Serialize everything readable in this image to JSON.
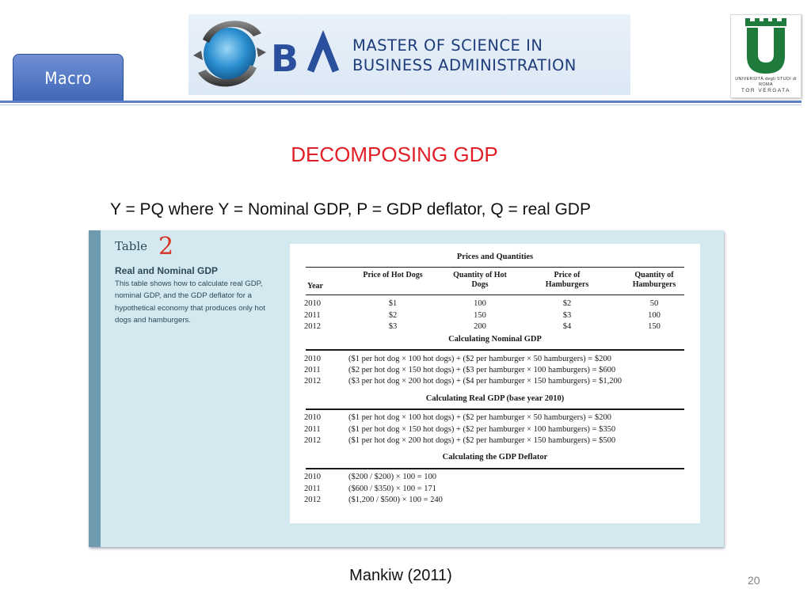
{
  "header": {
    "tab_label": "Macro",
    "banner_line1": "MASTER OF SCIENCE IN",
    "banner_line2": "BUSINESS ADMINISTRATION",
    "university_name_line1": "UNIVERSITÀ degli STUDI di ROMA",
    "university_name_line2": "TOR VERGATA",
    "colors": {
      "accent": "#e21e26",
      "tab": "#4a6fbf",
      "brand": "#1f3c7b"
    }
  },
  "slide": {
    "title": "DECOMPOSING GDP",
    "subtitle": "Y = PQ where  Y = Nominal GDP, P = GDP deflator, Q = real GDP",
    "source": "Mankiw (2011)",
    "page_number": "20"
  },
  "figure": {
    "table_label": "Table",
    "table_number": "2",
    "caption_title": "Real and Nominal GDP",
    "caption_text": "This table shows how to calculate real GDP, nominal GDP, and the GDP deflator for a hypothetical economy that produces only hot dogs and hamburgers.",
    "sections": {
      "prices": "Prices and Quantities",
      "nominal": "Calculating Nominal GDP",
      "real": "Calculating Real GDP (base year 2010)",
      "deflator": "Calculating the GDP Deflator"
    },
    "headers": {
      "year": "Year",
      "price_hotdogs": "Price of Hot Dogs",
      "qty_hotdogs": "Quantity of Hot Dogs",
      "price_hamburgers": "Price of Hamburgers",
      "qty_hamburgers": "Quantity of Hamburgers"
    },
    "prices_rows": [
      {
        "year": "2010",
        "price_hd": "$1",
        "qty_hd": "100",
        "price_hb": "$2",
        "qty_hb": "50"
      },
      {
        "year": "2011",
        "price_hd": "$2",
        "qty_hd": "150",
        "price_hb": "$3",
        "qty_hb": "100"
      },
      {
        "year": "2012",
        "price_hd": "$3",
        "qty_hd": "200",
        "price_hb": "$4",
        "qty_hb": "150"
      }
    ],
    "nominal_rows": [
      {
        "year": "2010",
        "calc": "($1 per hot dog × 100 hot dogs) + ($2 per hamburger × 50 hamburgers) = $200"
      },
      {
        "year": "2011",
        "calc": "($2 per hot dog × 150 hot dogs) + ($3 per hamburger × 100 hamburgers) = $600"
      },
      {
        "year": "2012",
        "calc": "($3 per hot dog × 200 hot dogs) + ($4 per hamburger × 150 hamburgers) = $1,200"
      }
    ],
    "real_rows": [
      {
        "year": "2010",
        "calc": "($1 per hot dog × 100 hot dogs) + ($2 per hamburger × 50 hamburgers) = $200"
      },
      {
        "year": "2011",
        "calc": "($1 per hot dog × 150 hot dogs) + ($2 per hamburger × 100 hamburgers) = $350"
      },
      {
        "year": "2012",
        "calc": "($1 per hot dog × 200 hot dogs) + ($2 per hamburger × 150 hamburgers) = $500"
      }
    ],
    "deflator_rows": [
      {
        "year": "2010",
        "calc": "($200 / $200) × 100 = 100"
      },
      {
        "year": "2011",
        "calc": "($600 / $350) × 100 = 171"
      },
      {
        "year": "2012",
        "calc": "($1,200 / $500) × 100 = 240"
      }
    ]
  }
}
